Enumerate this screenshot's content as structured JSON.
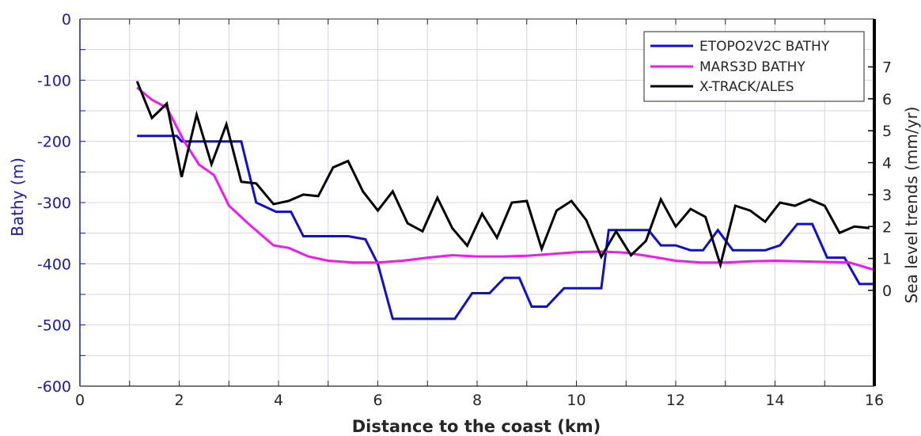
{
  "chart_data": {
    "type": "line",
    "title": "",
    "xlabel": "Distance to the coast (km)",
    "ylabel_left": "Bathy (m)",
    "ylabel_right": "Sea level trends (mm/yr)",
    "xlim": [
      0,
      16
    ],
    "ylim_left": [
      -600,
      0
    ],
    "ylim_right": [
      -3,
      8.5
    ],
    "x_ticks": [
      0,
      2,
      4,
      6,
      8,
      10,
      12,
      14,
      16
    ],
    "x_tick_labels": [
      "0",
      "2",
      "4",
      "6",
      "8",
      "10",
      "12",
      "14",
      "16"
    ],
    "y_left_ticks": [
      0,
      -100,
      -200,
      -300,
      -400,
      -500,
      -600
    ],
    "y_left_tick_labels": [
      "0",
      "-100",
      "-200",
      "-300",
      "-400",
      "-500",
      "-600"
    ],
    "y_right_ticks": [
      0,
      1,
      2,
      3,
      4,
      5,
      6,
      7
    ],
    "y_right_tick_labels": [
      "0",
      "1",
      "2",
      "3",
      "4",
      "5",
      "6",
      "7"
    ],
    "grid": true,
    "legend_position": "top-right",
    "colors": {
      "etopo": "#1010cc",
      "mars": "#ee1aee",
      "xtrack": "#000000",
      "left_axis": "#1a1aa6",
      "grid": "#d4d4e8"
    },
    "series": [
      {
        "name": "ETOPO2V2C BATHY",
        "axis": "left",
        "color": "#1010cc",
        "x": [
          1.15,
          1.95,
          2.05,
          3.25,
          3.55,
          3.95,
          4.25,
          4.5,
          5.4,
          5.75,
          6.0,
          6.3,
          7.55,
          7.9,
          8.25,
          8.55,
          8.85,
          9.1,
          9.4,
          9.75,
          10.5,
          10.65,
          11.45,
          11.7,
          12.0,
          12.3,
          12.55,
          12.85,
          13.15,
          13.8,
          14.1,
          14.45,
          14.75,
          15.05,
          15.4,
          15.7,
          16.0
        ],
        "y": [
          -191,
          -191,
          -200,
          -200,
          -300,
          -315,
          -315,
          -355,
          -355,
          -360,
          -400,
          -490,
          -490,
          -448,
          -448,
          -423,
          -423,
          -470,
          -470,
          -440,
          -440,
          -345,
          -345,
          -370,
          -370,
          -378,
          -378,
          -345,
          -378,
          -378,
          -370,
          -335,
          -335,
          -390,
          -390,
          -433,
          -433
        ]
      },
      {
        "name": "MARS3D BATHY",
        "axis": "left",
        "color": "#ee1aee",
        "x": [
          1.15,
          1.45,
          1.75,
          2.1,
          2.4,
          2.7,
          3.0,
          3.4,
          3.9,
          4.2,
          4.6,
          5.0,
          5.5,
          6.0,
          6.5,
          7.0,
          7.5,
          8.0,
          8.5,
          9.0,
          9.5,
          10.0,
          10.5,
          11.0,
          11.5,
          12.0,
          12.5,
          13.0,
          13.5,
          14.0,
          14.5,
          15.0,
          15.5,
          16.0
        ],
        "y": [
          -112,
          -132,
          -145,
          -200,
          -238,
          -255,
          -305,
          -335,
          -370,
          -374,
          -388,
          -395,
          -398,
          -398,
          -395,
          -390,
          -386,
          -388,
          -388,
          -387,
          -384,
          -381,
          -380,
          -382,
          -388,
          -395,
          -398,
          -398,
          -396,
          -395,
          -396,
          -397,
          -398,
          -410
        ]
      },
      {
        "name": "X-TRACK/ALES",
        "axis": "right",
        "color": "#000000",
        "x": [
          1.15,
          1.45,
          1.75,
          2.05,
          2.35,
          2.65,
          2.95,
          3.25,
          3.55,
          3.9,
          4.2,
          4.5,
          4.8,
          5.1,
          5.4,
          5.7,
          6.0,
          6.3,
          6.6,
          6.9,
          7.2,
          7.5,
          7.8,
          8.1,
          8.4,
          8.7,
          9.0,
          9.3,
          9.6,
          9.9,
          10.2,
          10.5,
          10.8,
          11.1,
          11.4,
          11.7,
          12.0,
          12.3,
          12.6,
          12.9,
          13.2,
          13.5,
          13.8,
          14.1,
          14.4,
          14.7,
          15.0,
          15.3,
          15.6,
          15.9
        ],
        "y": [
          6.55,
          5.4,
          5.85,
          3.55,
          5.5,
          3.95,
          5.2,
          3.4,
          3.35,
          2.7,
          2.8,
          3.0,
          2.95,
          3.85,
          4.05,
          3.1,
          2.5,
          3.1,
          2.1,
          1.85,
          2.9,
          1.95,
          1.4,
          2.4,
          1.65,
          2.75,
          2.8,
          1.3,
          2.5,
          2.8,
          2.2,
          1.05,
          1.85,
          1.1,
          1.55,
          2.85,
          2.0,
          2.55,
          2.3,
          0.8,
          2.65,
          2.5,
          2.15,
          2.75,
          2.65,
          2.85,
          2.65,
          1.8,
          2.0,
          1.95
        ]
      }
    ]
  }
}
